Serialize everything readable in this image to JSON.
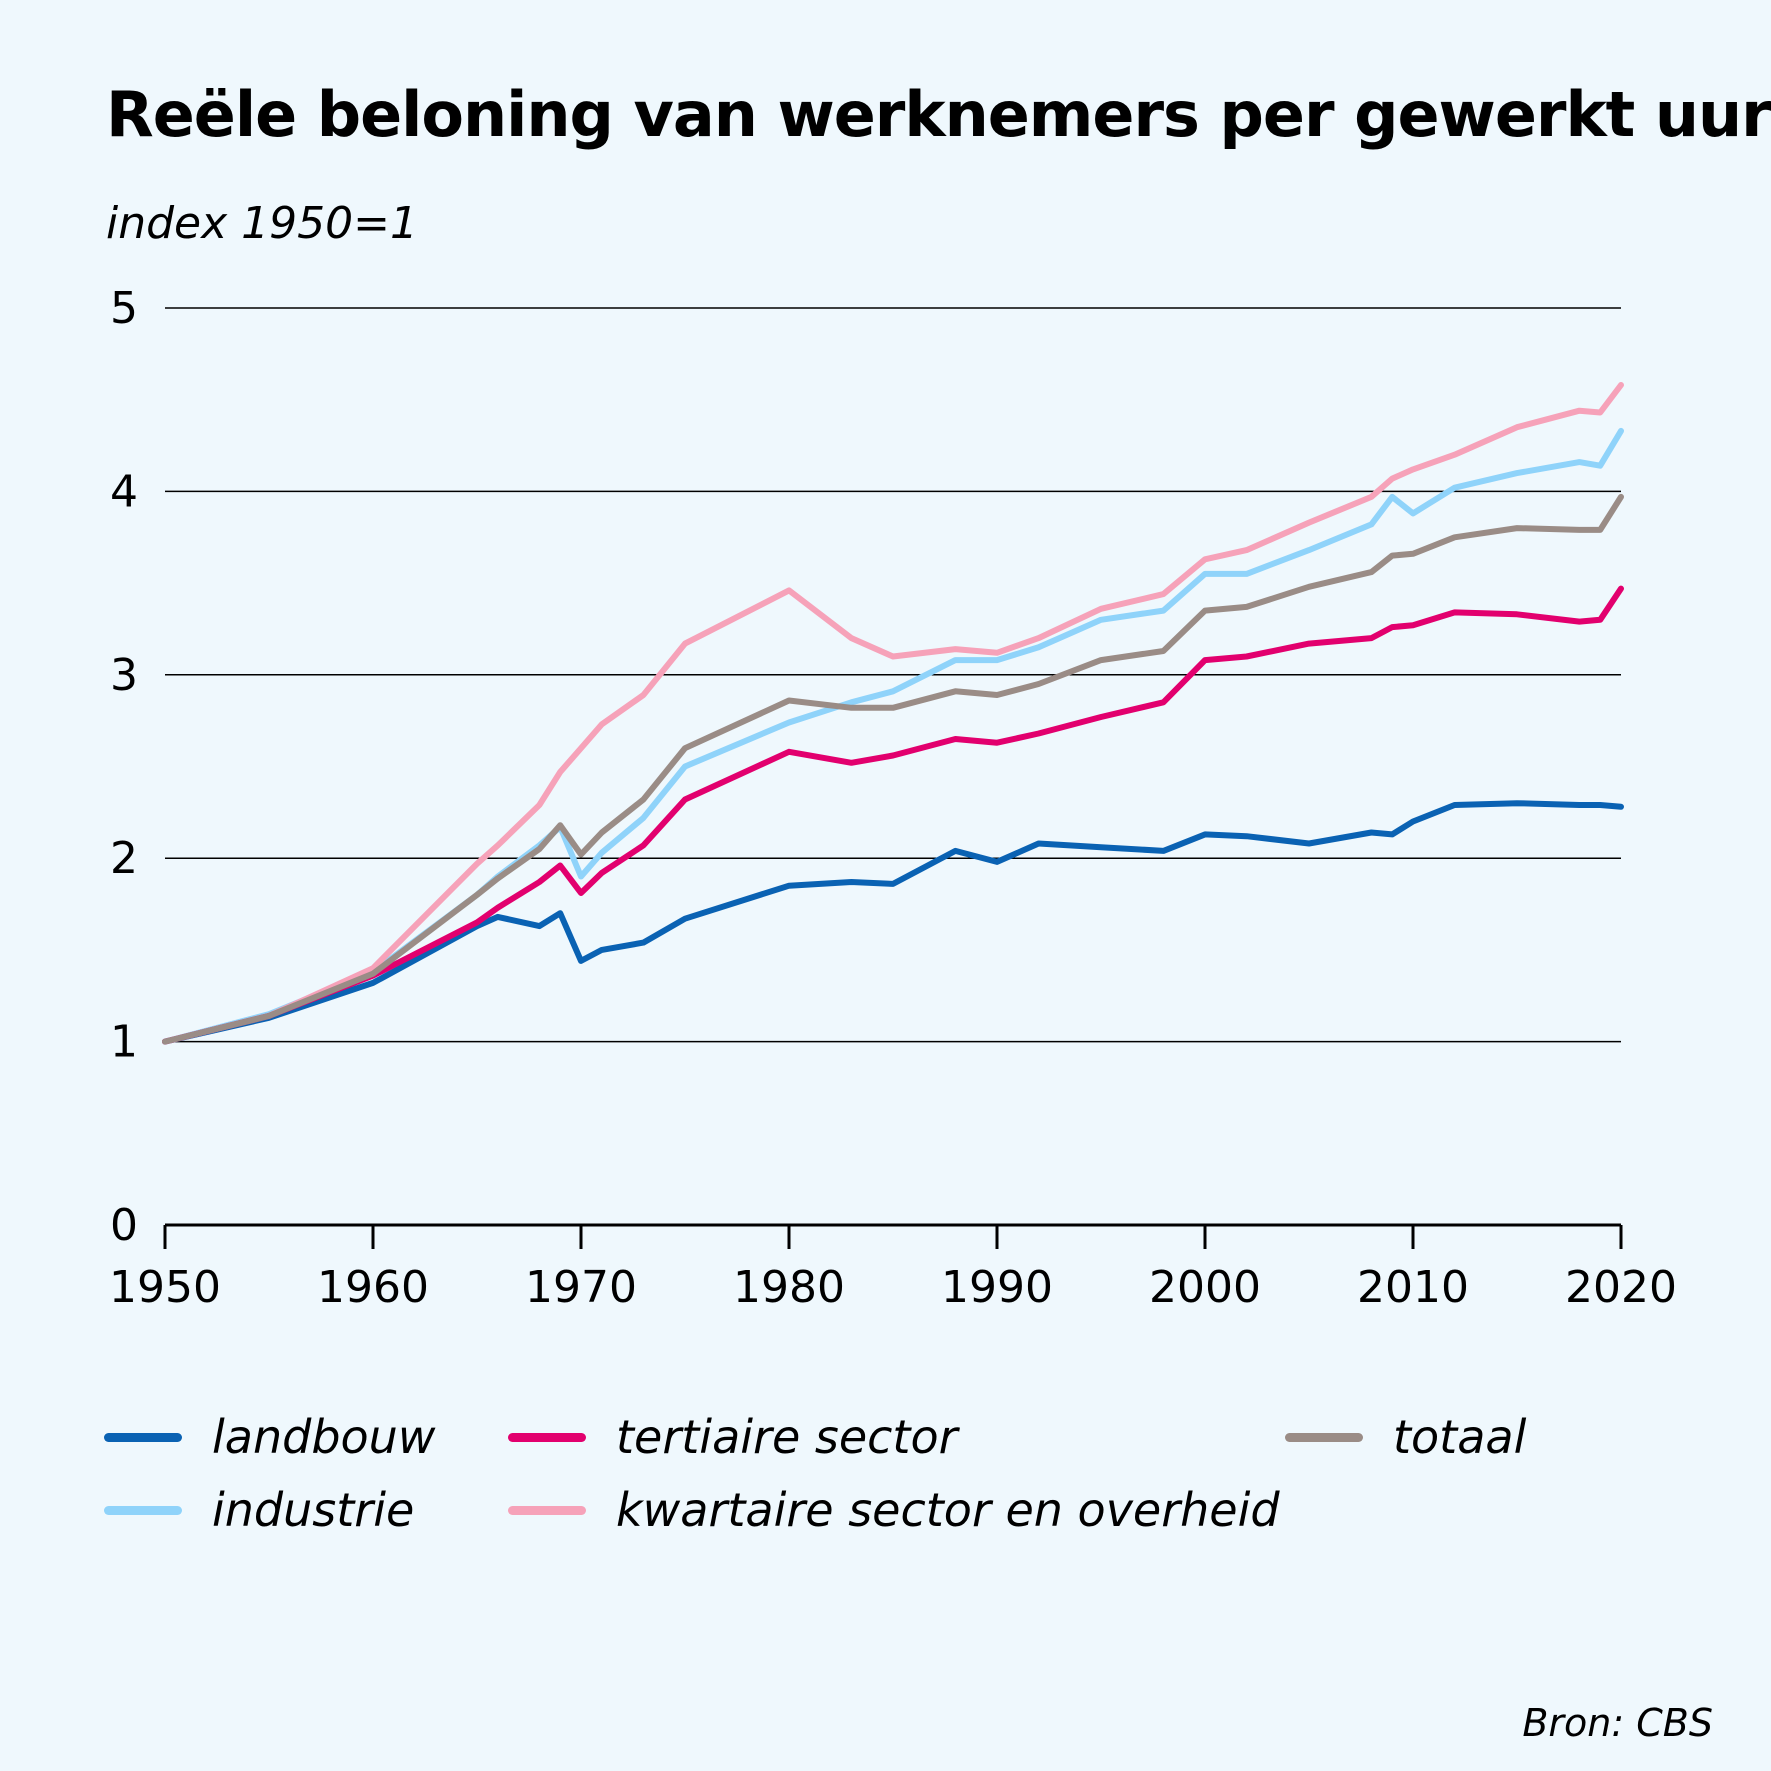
{
  "colors": {
    "background": "#eff8fd",
    "landbouw": "#0a62b3",
    "industrie": "#8fd3fa",
    "tertiaire": "#e2006e",
    "kwartaire": "#f6a2b9",
    "totaal": "#9a8c86",
    "grid": "#000000"
  },
  "source": "Bron: CBS",
  "chart_data": {
    "type": "line",
    "title": "Reële beloning van werknemers per gewerkt uur",
    "ylabel": "index 1950=1",
    "xlabel": "",
    "xlim": [
      1950,
      2020
    ],
    "ylim": [
      0,
      5
    ],
    "xticks": [
      1950,
      1960,
      1970,
      1980,
      1990,
      2000,
      2010,
      2020
    ],
    "yticks": [
      0,
      1,
      2,
      3,
      4,
      5
    ],
    "grid": "horizontal",
    "legend_position": "bottom",
    "x": [
      1950,
      1955,
      1960,
      1965,
      1966,
      1968,
      1969,
      1970,
      1971,
      1973,
      1975,
      1980,
      1983,
      1985,
      1988,
      1990,
      1992,
      1995,
      1998,
      2000,
      2002,
      2005,
      2008,
      2009,
      2010,
      2012,
      2015,
      2018,
      2019,
      2020
    ],
    "series": [
      {
        "name": "landbouw",
        "color_key": "landbouw",
        "values": [
          1.0,
          1.13,
          1.32,
          1.63,
          1.68,
          1.63,
          1.7,
          1.44,
          1.5,
          1.54,
          1.67,
          1.85,
          1.87,
          1.86,
          2.04,
          1.98,
          2.08,
          2.06,
          2.04,
          2.13,
          2.12,
          2.08,
          2.14,
          2.13,
          2.2,
          2.29,
          2.3,
          2.29,
          2.29,
          2.28
        ]
      },
      {
        "name": "industrie",
        "color_key": "industrie",
        "values": [
          1.0,
          1.15,
          1.38,
          1.8,
          1.9,
          2.07,
          2.17,
          1.9,
          2.03,
          2.22,
          2.5,
          2.74,
          2.85,
          2.91,
          3.08,
          3.08,
          3.15,
          3.3,
          3.35,
          3.55,
          3.55,
          3.68,
          3.82,
          3.97,
          3.88,
          4.02,
          4.1,
          4.16,
          4.14,
          4.33
        ]
      },
      {
        "name": "tertiaire sector",
        "color_key": "tertiaire",
        "values": [
          1.0,
          1.14,
          1.36,
          1.65,
          1.73,
          1.87,
          1.96,
          1.81,
          1.92,
          2.07,
          2.32,
          2.58,
          2.52,
          2.56,
          2.65,
          2.63,
          2.68,
          2.77,
          2.85,
          3.08,
          3.1,
          3.17,
          3.2,
          3.26,
          3.27,
          3.34,
          3.33,
          3.29,
          3.3,
          3.47
        ]
      },
      {
        "name": "kwartaire sector en overheid",
        "color_key": "kwartaire",
        "values": [
          1.0,
          1.14,
          1.4,
          1.97,
          2.07,
          2.29,
          2.47,
          2.6,
          2.73,
          2.89,
          3.17,
          3.46,
          3.2,
          3.1,
          3.14,
          3.12,
          3.2,
          3.36,
          3.44,
          3.63,
          3.68,
          3.83,
          3.97,
          4.07,
          4.12,
          4.2,
          4.35,
          4.44,
          4.43,
          4.58
        ]
      },
      {
        "name": "totaal",
        "color_key": "totaal",
        "values": [
          1.0,
          1.14,
          1.37,
          1.8,
          1.89,
          2.05,
          2.18,
          2.02,
          2.14,
          2.32,
          2.6,
          2.86,
          2.82,
          2.82,
          2.91,
          2.89,
          2.95,
          3.08,
          3.13,
          3.35,
          3.37,
          3.48,
          3.56,
          3.65,
          3.66,
          3.75,
          3.8,
          3.79,
          3.79,
          3.97
        ]
      }
    ]
  }
}
